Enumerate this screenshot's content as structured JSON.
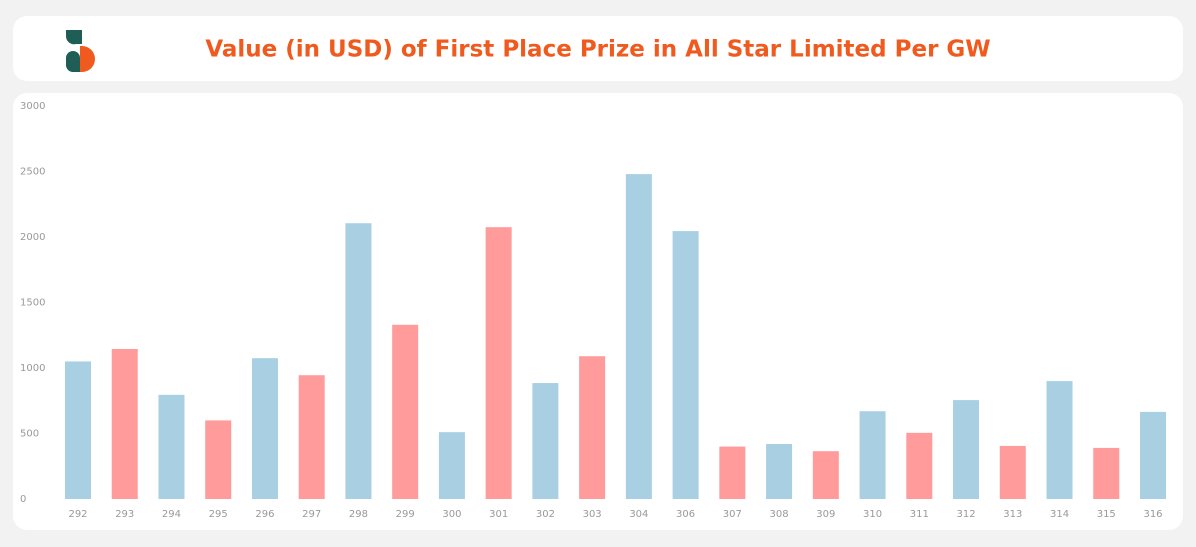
{
  "chart_data": {
    "type": "bar",
    "title": "Value (in USD) of First Place Prize in All Star Limited Per GW",
    "categories": [
      "292",
      "293",
      "294",
      "295",
      "296",
      "297",
      "298",
      "299",
      "300",
      "301",
      "302",
      "303",
      "304",
      "306",
      "307",
      "308",
      "309",
      "310",
      "311",
      "312",
      "313",
      "314",
      "315",
      "316"
    ],
    "values": [
      1050,
      1145,
      795,
      600,
      1075,
      945,
      2105,
      1330,
      510,
      2075,
      885,
      1090,
      2480,
      2045,
      400,
      420,
      365,
      670,
      505,
      755,
      405,
      900,
      390,
      665
    ],
    "colors": [
      "#a8cfe2",
      "#ff9b9b",
      "#a8cfe2",
      "#ff9b9b",
      "#a8cfe2",
      "#ff9b9b",
      "#a8cfe2",
      "#ff9b9b",
      "#a8cfe2",
      "#ff9b9b",
      "#a8cfe2",
      "#ff9b9b",
      "#a8cfe2",
      "#a8cfe2",
      "#ff9b9b",
      "#a8cfe2",
      "#ff9b9b",
      "#a8cfe2",
      "#ff9b9b",
      "#a8cfe2",
      "#ff9b9b",
      "#a8cfe2",
      "#ff9b9b",
      "#a8cfe2"
    ],
    "ylim": [
      0,
      3000
    ],
    "yticks": [
      0,
      500,
      1000,
      1500,
      2000,
      2500,
      3000
    ],
    "grid": false
  }
}
